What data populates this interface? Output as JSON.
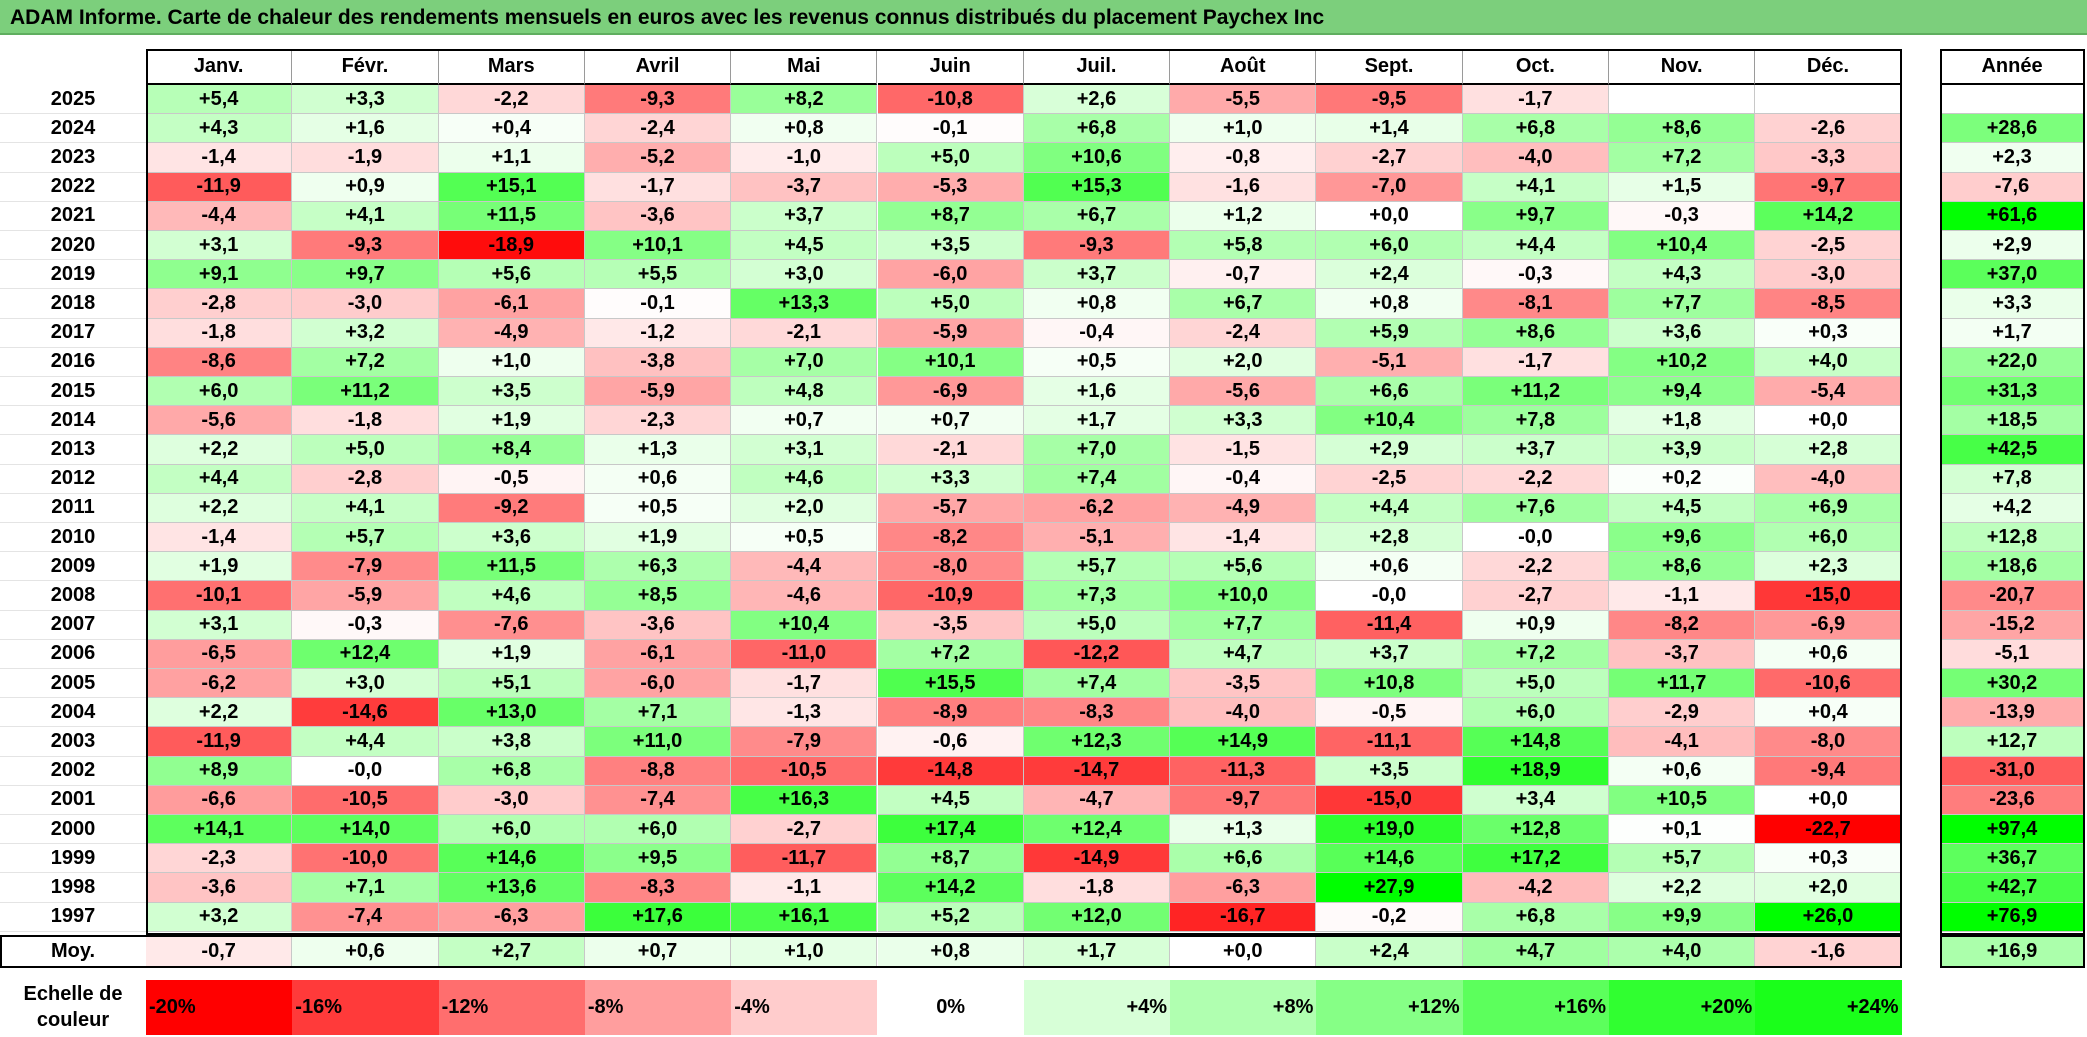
{
  "title": "ADAM Informe. Carte de chaleur des rendements mensuels en euros avec les revenus connus distribués du placement Paychex Inc",
  "chart_data": {
    "type": "heatmap",
    "title": "ADAM Informe. Carte de chaleur des rendements mensuels en euros avec les revenus connus distribués du placement Paychex Inc",
    "columns": [
      "Janv.",
      "Févr.",
      "Mars",
      "Avril",
      "Mai",
      "Juin",
      "Juil.",
      "Août",
      "Sept.",
      "Oct.",
      "Nov.",
      "Déc."
    ],
    "year_header": "Année",
    "avg_label": "Moy.",
    "rows": [
      {
        "year": "2025",
        "values": [
          "+5,4",
          "+3,3",
          "-2,2",
          "-9,3",
          "+8,2",
          "-10,8",
          "+2,6",
          "-5,5",
          "-9,5",
          "-1,7",
          "",
          ""
        ],
        "annual": ""
      },
      {
        "year": "2024",
        "values": [
          "+4,3",
          "+1,6",
          "+0,4",
          "-2,4",
          "+0,8",
          "-0,1",
          "+6,8",
          "+1,0",
          "+1,4",
          "+6,8",
          "+8,6",
          "-2,6"
        ],
        "annual": "+28,6"
      },
      {
        "year": "2023",
        "values": [
          "-1,4",
          "-1,9",
          "+1,1",
          "-5,2",
          "-1,0",
          "+5,0",
          "+10,6",
          "-0,8",
          "-2,7",
          "-4,0",
          "+7,2",
          "-3,3"
        ],
        "annual": "+2,3"
      },
      {
        "year": "2022",
        "values": [
          "-11,9",
          "+0,9",
          "+15,1",
          "-1,7",
          "-3,7",
          "-5,3",
          "+15,3",
          "-1,6",
          "-7,0",
          "+4,1",
          "+1,5",
          "-9,7"
        ],
        "annual": "-7,6"
      },
      {
        "year": "2021",
        "values": [
          "-4,4",
          "+4,1",
          "+11,5",
          "-3,6",
          "+3,7",
          "+8,7",
          "+6,7",
          "+1,2",
          "+0,0",
          "+9,7",
          "-0,3",
          "+14,2"
        ],
        "annual": "+61,6"
      },
      {
        "year": "2020",
        "values": [
          "+3,1",
          "-9,3",
          "-18,9",
          "+10,1",
          "+4,5",
          "+3,5",
          "-9,3",
          "+5,8",
          "+6,0",
          "+4,4",
          "+10,4",
          "-2,5"
        ],
        "annual": "+2,9"
      },
      {
        "year": "2019",
        "values": [
          "+9,1",
          "+9,7",
          "+5,6",
          "+5,5",
          "+3,0",
          "-6,0",
          "+3,7",
          "-0,7",
          "+2,4",
          "-0,3",
          "+4,3",
          "-3,0"
        ],
        "annual": "+37,0"
      },
      {
        "year": "2018",
        "values": [
          "-2,8",
          "-3,0",
          "-6,1",
          "-0,1",
          "+13,3",
          "+5,0",
          "+0,8",
          "+6,7",
          "+0,8",
          "-8,1",
          "+7,7",
          "-8,5"
        ],
        "annual": "+3,3"
      },
      {
        "year": "2017",
        "values": [
          "-1,8",
          "+3,2",
          "-4,9",
          "-1,2",
          "-2,1",
          "-5,9",
          "-0,4",
          "-2,4",
          "+5,9",
          "+8,6",
          "+3,6",
          "+0,3"
        ],
        "annual": "+1,7"
      },
      {
        "year": "2016",
        "values": [
          "-8,6",
          "+7,2",
          "+1,0",
          "-3,8",
          "+7,0",
          "+10,1",
          "+0,5",
          "+2,0",
          "-5,1",
          "-1,7",
          "+10,2",
          "+4,0"
        ],
        "annual": "+22,0"
      },
      {
        "year": "2015",
        "values": [
          "+6,0",
          "+11,2",
          "+3,5",
          "-5,9",
          "+4,8",
          "-6,9",
          "+1,6",
          "-5,6",
          "+6,6",
          "+11,2",
          "+9,4",
          "-5,4"
        ],
        "annual": "+31,3"
      },
      {
        "year": "2014",
        "values": [
          "-5,6",
          "-1,8",
          "+1,9",
          "-2,3",
          "+0,7",
          "+0,7",
          "+1,7",
          "+3,3",
          "+10,4",
          "+7,8",
          "+1,8",
          "+0,0"
        ],
        "annual": "+18,5"
      },
      {
        "year": "2013",
        "values": [
          "+2,2",
          "+5,0",
          "+8,4",
          "+1,3",
          "+3,1",
          "-2,1",
          "+7,0",
          "-1,5",
          "+2,9",
          "+3,7",
          "+3,9",
          "+2,8"
        ],
        "annual": "+42,5"
      },
      {
        "year": "2012",
        "values": [
          "+4,4",
          "-2,8",
          "-0,5",
          "+0,6",
          "+4,6",
          "+3,3",
          "+7,4",
          "-0,4",
          "-2,5",
          "-2,2",
          "+0,2",
          "-4,0"
        ],
        "annual": "+7,8"
      },
      {
        "year": "2011",
        "values": [
          "+2,2",
          "+4,1",
          "-9,2",
          "+0,5",
          "+2,0",
          "-5,7",
          "-6,2",
          "-4,9",
          "+4,4",
          "+7,6",
          "+4,5",
          "+6,9"
        ],
        "annual": "+4,2"
      },
      {
        "year": "2010",
        "values": [
          "-1,4",
          "+5,7",
          "+3,6",
          "+1,9",
          "+0,5",
          "-8,2",
          "-5,1",
          "-1,4",
          "+2,8",
          "-0,0",
          "+9,6",
          "+6,0"
        ],
        "annual": "+12,8"
      },
      {
        "year": "2009",
        "values": [
          "+1,9",
          "-7,9",
          "+11,5",
          "+6,3",
          "-4,4",
          "-8,0",
          "+5,7",
          "+5,6",
          "+0,6",
          "-2,2",
          "+8,6",
          "+2,3"
        ],
        "annual": "+18,6"
      },
      {
        "year": "2008",
        "values": [
          "-10,1",
          "-5,9",
          "+4,6",
          "+8,5",
          "-4,6",
          "-10,9",
          "+7,3",
          "+10,0",
          "-0,0",
          "-2,7",
          "-1,1",
          "-15,0"
        ],
        "annual": "-20,7"
      },
      {
        "year": "2007",
        "values": [
          "+3,1",
          "-0,3",
          "-7,6",
          "-3,6",
          "+10,4",
          "-3,5",
          "+5,0",
          "+7,7",
          "-11,4",
          "+0,9",
          "-8,2",
          "-6,9"
        ],
        "annual": "-15,2"
      },
      {
        "year": "2006",
        "values": [
          "-6,5",
          "+12,4",
          "+1,9",
          "-6,1",
          "-11,0",
          "+7,2",
          "-12,2",
          "+4,7",
          "+3,7",
          "+7,2",
          "-3,7",
          "+0,6"
        ],
        "annual": "-5,1"
      },
      {
        "year": "2005",
        "values": [
          "-6,2",
          "+3,0",
          "+5,1",
          "-6,0",
          "-1,7",
          "+15,5",
          "+7,4",
          "-3,5",
          "+10,8",
          "+5,0",
          "+11,7",
          "-10,6"
        ],
        "annual": "+30,2"
      },
      {
        "year": "2004",
        "values": [
          "+2,2",
          "-14,6",
          "+13,0",
          "+7,1",
          "-1,3",
          "-8,9",
          "-8,3",
          "-4,0",
          "-0,5",
          "+6,0",
          "-2,9",
          "+0,4"
        ],
        "annual": "-13,9"
      },
      {
        "year": "2003",
        "values": [
          "-11,9",
          "+4,4",
          "+3,8",
          "+11,0",
          "-7,9",
          "-0,6",
          "+12,3",
          "+14,9",
          "-11,1",
          "+14,8",
          "-4,1",
          "-8,0"
        ],
        "annual": "+12,7"
      },
      {
        "year": "2002",
        "values": [
          "+8,9",
          "-0,0",
          "+6,8",
          "-8,8",
          "-10,5",
          "-14,8",
          "-14,7",
          "-11,3",
          "+3,5",
          "+18,9",
          "+0,6",
          "-9,4"
        ],
        "annual": "-31,0"
      },
      {
        "year": "2001",
        "values": [
          "-6,6",
          "-10,5",
          "-3,0",
          "-7,4",
          "+16,3",
          "+4,5",
          "-4,7",
          "-9,7",
          "-15,0",
          "+3,4",
          "+10,5",
          "+0,0"
        ],
        "annual": "-23,6"
      },
      {
        "year": "2000",
        "values": [
          "+14,1",
          "+14,0",
          "+6,0",
          "+6,0",
          "-2,7",
          "+17,4",
          "+12,4",
          "+1,3",
          "+19,0",
          "+12,8",
          "+0,1",
          "-22,7"
        ],
        "annual": "+97,4"
      },
      {
        "year": "1999",
        "values": [
          "-2,3",
          "-10,0",
          "+14,6",
          "+9,5",
          "-11,7",
          "+8,7",
          "-14,9",
          "+6,6",
          "+14,6",
          "+17,2",
          "+5,7",
          "+0,3"
        ],
        "annual": "+36,7"
      },
      {
        "year": "1998",
        "values": [
          "-3,6",
          "+7,1",
          "+13,6",
          "-8,3",
          "-1,1",
          "+14,2",
          "-1,8",
          "-6,3",
          "+27,9",
          "-4,2",
          "+2,2",
          "+2,0"
        ],
        "annual": "+42,7"
      },
      {
        "year": "1997",
        "values": [
          "+3,2",
          "-7,4",
          "-6,3",
          "+17,6",
          "+16,1",
          "+5,2",
          "+12,0",
          "-16,7",
          "-0,2",
          "+6,8",
          "+9,9",
          "+26,0"
        ],
        "annual": "+76,9"
      }
    ],
    "averages": {
      "values": [
        "-0,7",
        "+0,6",
        "+2,7",
        "+0,7",
        "+1,0",
        "+0,8",
        "+1,7",
        "+0,0",
        "+2,4",
        "+4,7",
        "+4,0",
        "-1,6"
      ],
      "annual": "+16,9"
    },
    "scale": {
      "label_line1": "Echelle de",
      "label_line2": "couleur",
      "steps": [
        "-20%",
        "-16%",
        "-12%",
        "-8%",
        "-4%",
        "0%",
        "+4%",
        "+8%",
        "+12%",
        "+16%",
        "+20%",
        "+24%"
      ],
      "step_values": [
        -20,
        -16,
        -12,
        -8,
        -4,
        0,
        4,
        8,
        12,
        16,
        20,
        24
      ],
      "colors": [
        "#ff0000",
        "#ff3a3a",
        "#ff6e6e",
        "#ff9e9e",
        "#ffcccc",
        "#ffffff",
        "#d7ffd7",
        "#b0ffb0",
        "#86ff86",
        "#5cff5c",
        "#30ff30",
        "#1aff1a"
      ]
    }
  }
}
